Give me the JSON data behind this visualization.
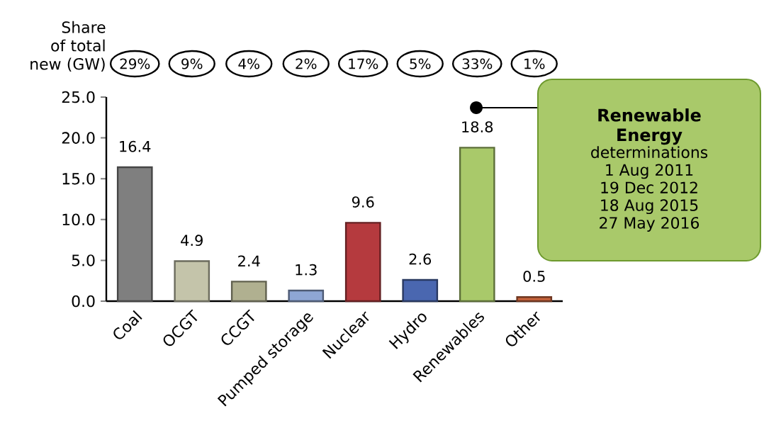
{
  "chart_data": {
    "type": "bar",
    "categories": [
      "Coal",
      "OCGT",
      "CCGT",
      "Pumped storage",
      "Nuclear",
      "Hydro",
      "Renewables",
      "Other"
    ],
    "values": [
      16.4,
      4.9,
      2.4,
      1.3,
      9.6,
      2.6,
      18.8,
      0.5
    ],
    "colors": [
      "#7f7f7f",
      "#c4c4aa",
      "#b0b090",
      "#8ea6d4",
      "#b53a3e",
      "#4a67b0",
      "#a9c96a",
      "#c8643c"
    ],
    "ylim": [
      0,
      25
    ],
    "yticks": [
      {
        "value": 0,
        "label": "0.0"
      },
      {
        "value": 5,
        "label": "5.0"
      },
      {
        "value": 10,
        "label": "10.0"
      },
      {
        "value": 15,
        "label": "15.0"
      },
      {
        "value": 20,
        "label": "20.0"
      },
      {
        "value": 25,
        "label": "25.0"
      }
    ],
    "data_labels": true,
    "grid": false,
    "annotations": [
      "Share of total new (GW)",
      "29%",
      "9%",
      "4%",
      "2%",
      "17%",
      "5%",
      "33%",
      "1%",
      "**Renewable Energy**",
      "determinations",
      "1 Aug 2011",
      "19 Dec 2012",
      "18 Aug 2015",
      "27 May 2016"
    ]
  }
}
